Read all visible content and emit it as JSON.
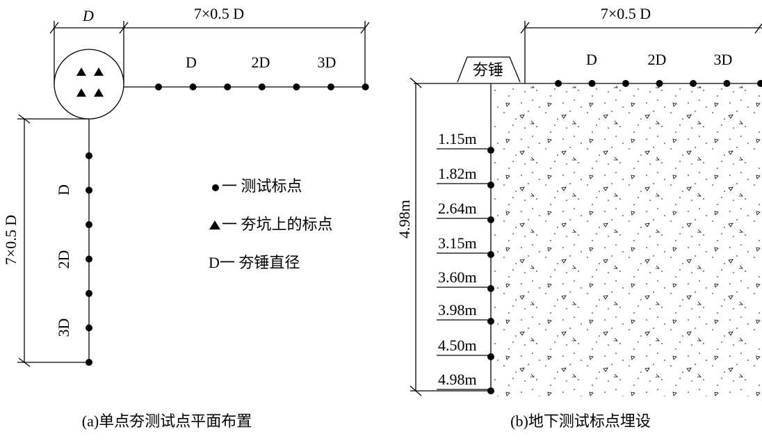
{
  "panel_a": {
    "caption": "(a)单点夯测试点平面布置",
    "top_dim_d": "D",
    "top_dim_span": "7×0.5 D",
    "h_labels": [
      "D",
      "2D",
      "3D"
    ],
    "v_dim": "7×0.5 D",
    "v_labels": [
      "D",
      "2D",
      "3D"
    ],
    "legend": [
      "一 测试标点",
      "一 夯坑上的标点",
      "D一 夯锤直径"
    ]
  },
  "panel_b": {
    "caption": "(b)地下测试标点埋设",
    "rammer": "夯锤",
    "top_dim": "7×0.5 D",
    "h_labels": [
      "D",
      "2D",
      "3D"
    ],
    "depth_dim": "4.98m",
    "depth_labels": [
      "1.15m",
      "1.82m",
      "2.64m",
      "3.15m",
      "3.60m",
      "3.98m",
      "4.50m",
      "4.98m"
    ]
  }
}
